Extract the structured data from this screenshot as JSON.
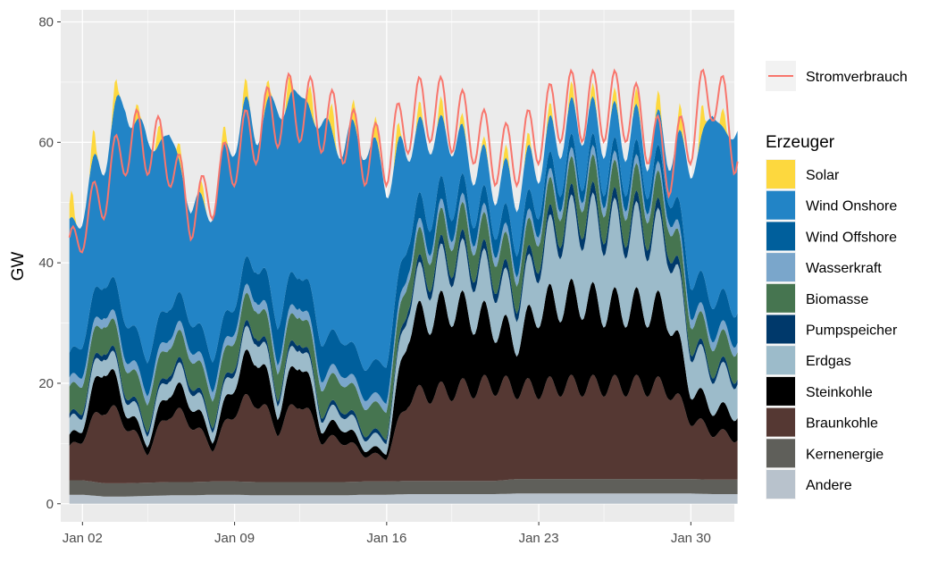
{
  "chart_data": {
    "type": "area",
    "stacked": true,
    "xlabel": "",
    "ylabel": "GW",
    "ylim": [
      -3,
      82
    ],
    "xlim": [
      "2022-01-01",
      "2022-02-01"
    ],
    "y_ticks": [
      0,
      20,
      40,
      60,
      80
    ],
    "x_ticks": [
      {
        "date": "2022-01-02",
        "label": "Jan 02"
      },
      {
        "date": "2022-01-09",
        "label": "Jan 09"
      },
      {
        "date": "2022-01-16",
        "label": "Jan 16"
      },
      {
        "date": "2022-01-23",
        "label": "Jan 23"
      },
      {
        "date": "2022-01-30",
        "label": "Jan 30"
      }
    ],
    "grid": true,
    "legend_position": "right",
    "legend_title": "Erzeuger",
    "line_legend_label": "Stromverbrauch",
    "line_color": "#F8766D",
    "x": [
      "2022-01-01",
      "2022-01-02",
      "2022-01-03",
      "2022-01-04",
      "2022-01-05",
      "2022-01-06",
      "2022-01-07",
      "2022-01-08",
      "2022-01-09",
      "2022-01-10",
      "2022-01-11",
      "2022-01-12",
      "2022-01-13",
      "2022-01-14",
      "2022-01-15",
      "2022-01-16",
      "2022-01-17",
      "2022-01-18",
      "2022-01-19",
      "2022-01-20",
      "2022-01-21",
      "2022-01-22",
      "2022-01-23",
      "2022-01-24",
      "2022-01-25",
      "2022-01-26",
      "2022-01-27",
      "2022-01-28",
      "2022-01-29",
      "2022-01-30",
      "2022-01-31",
      "2022-02-01"
    ],
    "series": [
      {
        "name": "Andere",
        "color": "#B8C2CC",
        "values": [
          1.5,
          1.5,
          1.2,
          1.2,
          1.3,
          1.4,
          1.4,
          1.5,
          1.5,
          1.4,
          1.4,
          1.4,
          1.4,
          1.4,
          1.5,
          1.5,
          1.6,
          1.6,
          1.6,
          1.6,
          1.6,
          1.7,
          1.7,
          1.7,
          1.7,
          1.7,
          1.7,
          1.7,
          1.7,
          1.7,
          1.6,
          1.6
        ]
      },
      {
        "name": "Kernenergie",
        "color": "#5F5F5A",
        "values": [
          2.4,
          2.4,
          2.2,
          2.2,
          2.2,
          2.2,
          2.2,
          2.2,
          2.2,
          2.2,
          2.2,
          2.2,
          2.2,
          2.2,
          2.2,
          2.2,
          2.2,
          2.2,
          2.2,
          2.2,
          2.2,
          2.4,
          2.4,
          2.4,
          2.4,
          2.4,
          2.4,
          2.4,
          2.4,
          2.4,
          2.4,
          2.4
        ]
      },
      {
        "name": "Braunkohle",
        "color": "#553833",
        "values": [
          4.0,
          7.0,
          13.0,
          10.0,
          5.0,
          12.0,
          10.0,
          5.5,
          12.0,
          14.0,
          8.5,
          14.0,
          7.0,
          7.0,
          4.5,
          4.0,
          14.0,
          14.5,
          15.0,
          15.5,
          16.0,
          15.0,
          15.0,
          15.5,
          15.5,
          15.5,
          15.5,
          15.5,
          15.0,
          10.0,
          8.0,
          7.0
        ]
      },
      {
        "name": "Steinkohle",
        "color": "#000000",
        "values": [
          1.5,
          2.0,
          7.5,
          2.5,
          1.5,
          4.0,
          3.5,
          1.5,
          5.0,
          8.0,
          3.0,
          7.5,
          2.0,
          2.5,
          1.0,
          1.0,
          12.0,
          13.0,
          14.0,
          12.0,
          10.0,
          8.0,
          13.5,
          14.0,
          14.5,
          13.0,
          13.0,
          13.0,
          12.5,
          5.0,
          4.0,
          4.0
        ]
      },
      {
        "name": "Erdgas",
        "color": "#9CBBCA",
        "values": [
          2.5,
          2.5,
          3.0,
          2.5,
          2.0,
          3.0,
          3.0,
          2.0,
          3.0,
          4.0,
          2.5,
          3.5,
          2.0,
          2.5,
          2.0,
          2.0,
          5.0,
          6.5,
          7.5,
          8.0,
          7.5,
          6.5,
          8.5,
          12.0,
          13.0,
          13.5,
          13.0,
          12.5,
          12.0,
          7.0,
          6.0,
          6.0
        ]
      },
      {
        "name": "Pumpspeicher",
        "color": "#00396B",
        "values": [
          0.7,
          0.8,
          0.9,
          0.8,
          0.7,
          0.9,
          0.9,
          0.7,
          0.9,
          1.0,
          0.8,
          1.0,
          0.7,
          0.8,
          0.7,
          0.7,
          1.2,
          1.4,
          1.5,
          1.6,
          1.5,
          1.4,
          1.6,
          1.8,
          1.9,
          1.9,
          1.8,
          1.8,
          1.7,
          1.0,
          0.9,
          0.9
        ]
      },
      {
        "name": "Biomasse",
        "color": "#467550",
        "values": [
          4.5,
          4.5,
          4.5,
          4.5,
          4.5,
          4.5,
          4.5,
          4.5,
          4.5,
          4.5,
          4.5,
          4.5,
          4.5,
          4.5,
          4.5,
          4.5,
          4.5,
          4.5,
          4.5,
          4.5,
          4.5,
          4.5,
          4.5,
          4.5,
          4.5,
          4.5,
          4.5,
          4.5,
          4.5,
          4.5,
          4.5,
          4.5
        ]
      },
      {
        "name": "Wasserkraft",
        "color": "#7AA6CB",
        "values": [
          1.5,
          1.5,
          1.5,
          1.5,
          1.5,
          1.5,
          1.5,
          1.5,
          1.5,
          1.5,
          1.5,
          1.5,
          1.5,
          1.5,
          1.5,
          1.5,
          1.5,
          1.5,
          1.5,
          1.5,
          1.5,
          1.5,
          1.5,
          1.5,
          1.5,
          1.5,
          1.5,
          1.5,
          1.5,
          1.5,
          1.5,
          1.5
        ]
      },
      {
        "name": "Wind Offshore",
        "color": "#005F9C",
        "values": [
          3.5,
          5.0,
          5.0,
          6.0,
          5.5,
          5.0,
          4.5,
          5.0,
          4.0,
          5.0,
          6.0,
          5.0,
          6.0,
          5.5,
          5.0,
          6.0,
          4.5,
          4.0,
          3.5,
          3.0,
          3.0,
          3.5,
          3.0,
          2.5,
          2.0,
          2.0,
          2.5,
          2.5,
          3.0,
          5.0,
          5.5,
          5.0
        ]
      },
      {
        "name": "Wind Onshore",
        "color": "#2284C6",
        "values": [
          20.0,
          22.0,
          20.0,
          36.0,
          35.0,
          27.0,
          18.0,
          25.0,
          28.0,
          22.0,
          35.0,
          28.0,
          35.0,
          32.0,
          38.0,
          30.0,
          14.0,
          12.0,
          10.0,
          7.0,
          6.0,
          8.0,
          6.0,
          6.0,
          7.0,
          6.0,
          6.0,
          5.0,
          6.0,
          18.0,
          30.0,
          28.0
        ]
      },
      {
        "name": "Solar",
        "color": "#FDD83E",
        "values": [
          2.0,
          3.0,
          2.0,
          2.0,
          1.0,
          2.5,
          1.0,
          1.5,
          2.0,
          1.5,
          2.0,
          2.0,
          2.5,
          2.5,
          1.5,
          2.5,
          1.0,
          2.0,
          1.5,
          0.5,
          1.0,
          1.5,
          1.0,
          1.5,
          1.5,
          1.0,
          1.5,
          1.5,
          2.0,
          3.0,
          2.5,
          1.0
        ]
      }
    ],
    "line_values": [
      38,
      46,
      52,
      60,
      60,
      58,
      48,
      52,
      58,
      62,
      65,
      66,
      64,
      62,
      58,
      58,
      64,
      66,
      64,
      62,
      58,
      58,
      62,
      66,
      66,
      66,
      66,
      62,
      56,
      62,
      70,
      60
    ]
  }
}
